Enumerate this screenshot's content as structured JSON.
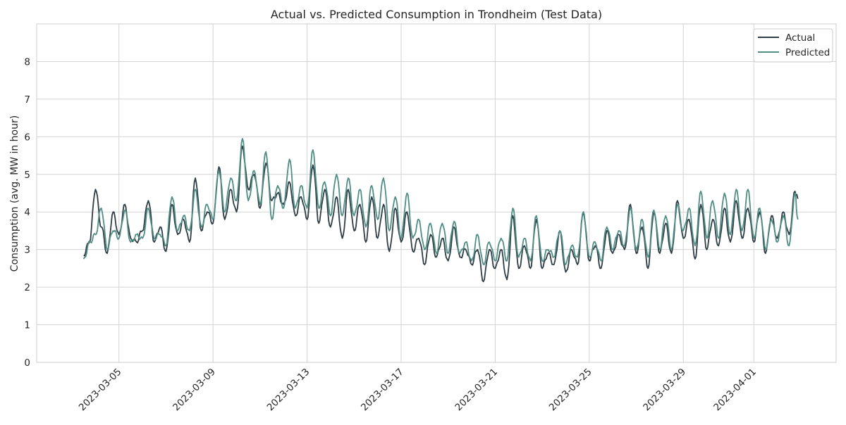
{
  "chart_data": {
    "type": "line",
    "title": "Actual vs. Predicted Consumption in Trondheim (Test Data)",
    "xlabel": "",
    "ylabel": "Consumption (avg. MW in hour)",
    "x_range": [
      "2023-03-03",
      "2023-04-02"
    ],
    "ylim": [
      0,
      9
    ],
    "yticks": [
      0,
      1,
      2,
      3,
      4,
      5,
      6,
      7,
      8
    ],
    "xticks": [
      "2023-03-05",
      "2023-03-09",
      "2023-03-13",
      "2023-03-17",
      "2023-03-21",
      "2023-03-25",
      "2023-03-29",
      "2023-04-01"
    ],
    "grid": true,
    "legend_position": "top-right",
    "colors": {
      "actual": "#2e3d45",
      "predicted": "#4f8d85",
      "grid": "#d4d4d4",
      "axes_edge": "#cccccc"
    },
    "series": [
      {
        "name": "Actual",
        "color": "#2e3d45",
        "points": [
          [
            "2023-03-03 12:00",
            2.85
          ],
          [
            "2023-03-03 18:00",
            3.2
          ],
          [
            "2023-03-04 00:00",
            4.6
          ],
          [
            "2023-03-04 06:00",
            3.6
          ],
          [
            "2023-03-04 12:00",
            2.9
          ],
          [
            "2023-03-04 18:00",
            4.0
          ],
          [
            "2023-03-05 00:00",
            3.4
          ],
          [
            "2023-03-05 06:00",
            4.2
          ],
          [
            "2023-03-05 12:00",
            3.3
          ],
          [
            "2023-03-05 18:00",
            3.2
          ],
          [
            "2023-03-06 00:00",
            3.5
          ],
          [
            "2023-03-06 06:00",
            4.3
          ],
          [
            "2023-03-06 12:00",
            3.2
          ],
          [
            "2023-03-06 18:00",
            3.6
          ],
          [
            "2023-03-07 00:00",
            2.95
          ],
          [
            "2023-03-07 06:00",
            4.2
          ],
          [
            "2023-03-07 12:00",
            3.4
          ],
          [
            "2023-03-07 18:00",
            3.8
          ],
          [
            "2023-03-08 00:00",
            3.2
          ],
          [
            "2023-03-08 06:00",
            4.9
          ],
          [
            "2023-03-08 12:00",
            3.5
          ],
          [
            "2023-03-08 18:00",
            4.0
          ],
          [
            "2023-03-09 00:00",
            3.7
          ],
          [
            "2023-03-09 06:00",
            5.2
          ],
          [
            "2023-03-09 12:00",
            3.8
          ],
          [
            "2023-03-09 18:00",
            4.6
          ],
          [
            "2023-03-10 00:00",
            4.0
          ],
          [
            "2023-03-10 06:00",
            5.75
          ],
          [
            "2023-03-10 12:00",
            4.6
          ],
          [
            "2023-03-10 18:00",
            5.0
          ],
          [
            "2023-03-11 00:00",
            4.1
          ],
          [
            "2023-03-11 06:00",
            5.3
          ],
          [
            "2023-03-11 12:00",
            4.3
          ],
          [
            "2023-03-11 18:00",
            4.5
          ],
          [
            "2023-03-12 00:00",
            4.2
          ],
          [
            "2023-03-12 06:00",
            4.8
          ],
          [
            "2023-03-12 12:00",
            3.9
          ],
          [
            "2023-03-12 18:00",
            4.4
          ],
          [
            "2023-03-13 00:00",
            3.8
          ],
          [
            "2023-03-13 06:00",
            5.25
          ],
          [
            "2023-03-13 12:00",
            3.7
          ],
          [
            "2023-03-13 18:00",
            4.6
          ],
          [
            "2023-03-14 00:00",
            3.6
          ],
          [
            "2023-03-14 06:00",
            4.4
          ],
          [
            "2023-03-14 12:00",
            3.3
          ],
          [
            "2023-03-14 18:00",
            4.6
          ],
          [
            "2023-03-15 00:00",
            3.5
          ],
          [
            "2023-03-15 06:00",
            4.2
          ],
          [
            "2023-03-15 12:00",
            3.2
          ],
          [
            "2023-03-15 18:00",
            4.4
          ],
          [
            "2023-03-16 00:00",
            3.3
          ],
          [
            "2023-03-16 06:00",
            4.2
          ],
          [
            "2023-03-16 12:00",
            2.95
          ],
          [
            "2023-03-16 18:00",
            4.1
          ],
          [
            "2023-03-17 00:00",
            3.2
          ],
          [
            "2023-03-17 06:00",
            4.0
          ],
          [
            "2023-03-17 12:00",
            2.95
          ],
          [
            "2023-03-17 18:00",
            3.3
          ],
          [
            "2023-03-18 00:00",
            2.6
          ],
          [
            "2023-03-18 06:00",
            3.4
          ],
          [
            "2023-03-18 12:00",
            2.8
          ],
          [
            "2023-03-18 18:00",
            3.3
          ],
          [
            "2023-03-19 00:00",
            2.7
          ],
          [
            "2023-03-19 06:00",
            3.6
          ],
          [
            "2023-03-19 12:00",
            2.8
          ],
          [
            "2023-03-19 18:00",
            3.0
          ],
          [
            "2023-03-20 00:00",
            2.6
          ],
          [
            "2023-03-20 06:00",
            3.0
          ],
          [
            "2023-03-20 12:00",
            2.15
          ],
          [
            "2023-03-20 18:00",
            3.0
          ],
          [
            "2023-03-21 00:00",
            2.5
          ],
          [
            "2023-03-21 06:00",
            3.0
          ],
          [
            "2023-03-21 12:00",
            2.2
          ],
          [
            "2023-03-21 18:00",
            3.9
          ],
          [
            "2023-03-22 00:00",
            2.5
          ],
          [
            "2023-03-22 06:00",
            3.1
          ],
          [
            "2023-03-22 12:00",
            2.5
          ],
          [
            "2023-03-22 18:00",
            3.8
          ],
          [
            "2023-03-23 00:00",
            2.5
          ],
          [
            "2023-03-23 06:00",
            2.9
          ],
          [
            "2023-03-23 12:00",
            2.6
          ],
          [
            "2023-03-23 18:00",
            3.5
          ],
          [
            "2023-03-24 00:00",
            2.4
          ],
          [
            "2023-03-24 06:00",
            3.0
          ],
          [
            "2023-03-24 12:00",
            2.6
          ],
          [
            "2023-03-24 18:00",
            4.0
          ],
          [
            "2023-03-25 00:00",
            2.7
          ],
          [
            "2023-03-25 06:00",
            3.1
          ],
          [
            "2023-03-25 12:00",
            2.5
          ],
          [
            "2023-03-25 18:00",
            3.5
          ],
          [
            "2023-03-26 00:00",
            2.9
          ],
          [
            "2023-03-26 06:00",
            3.4
          ],
          [
            "2023-03-26 12:00",
            3.0
          ],
          [
            "2023-03-26 18:00",
            4.2
          ],
          [
            "2023-03-27 00:00",
            2.9
          ],
          [
            "2023-03-27 06:00",
            3.6
          ],
          [
            "2023-03-27 12:00",
            2.5
          ],
          [
            "2023-03-27 18:00",
            4.0
          ],
          [
            "2023-03-28 00:00",
            2.9
          ],
          [
            "2023-03-28 06:00",
            3.7
          ],
          [
            "2023-03-28 12:00",
            2.9
          ],
          [
            "2023-03-28 18:00",
            4.3
          ],
          [
            "2023-03-29 00:00",
            3.3
          ],
          [
            "2023-03-29 06:00",
            3.8
          ],
          [
            "2023-03-29 12:00",
            2.75
          ],
          [
            "2023-03-29 18:00",
            4.2
          ],
          [
            "2023-03-30 00:00",
            3.0
          ],
          [
            "2023-03-30 06:00",
            3.8
          ],
          [
            "2023-03-30 12:00",
            3.1
          ],
          [
            "2023-03-30 18:00",
            4.1
          ],
          [
            "2023-03-31 00:00",
            3.2
          ],
          [
            "2023-03-31 06:00",
            4.3
          ],
          [
            "2023-03-31 12:00",
            3.3
          ],
          [
            "2023-03-31 18:00",
            4.1
          ],
          [
            "2023-04-01 00:00",
            3.2
          ],
          [
            "2023-04-01 06:00",
            4.0
          ],
          [
            "2023-04-01 12:00",
            2.9
          ],
          [
            "2023-04-01 18:00",
            3.9
          ],
          [
            "2023-04-02 00:00",
            3.3
          ],
          [
            "2023-04-02 06:00",
            4.0
          ],
          [
            "2023-04-02 12:00",
            3.4
          ],
          [
            "2023-04-02 18:00",
            4.55
          ],
          [
            "2023-04-02 21:00",
            4.35
          ]
        ]
      },
      {
        "name": "Predicted",
        "color": "#4f8d85",
        "points": [
          [
            "2023-03-03 12:00",
            2.75
          ],
          [
            "2023-03-03 18:00",
            3.2
          ],
          [
            "2023-03-04 00:00",
            3.4
          ],
          [
            "2023-03-04 06:00",
            4.1
          ],
          [
            "2023-03-04 12:00",
            3.0
          ],
          [
            "2023-03-04 18:00",
            3.5
          ],
          [
            "2023-03-05 00:00",
            3.3
          ],
          [
            "2023-03-05 06:00",
            4.05
          ],
          [
            "2023-03-05 12:00",
            3.2
          ],
          [
            "2023-03-05 18:00",
            3.4
          ],
          [
            "2023-03-06 00:00",
            3.3
          ],
          [
            "2023-03-06 06:00",
            4.1
          ],
          [
            "2023-03-06 12:00",
            3.3
          ],
          [
            "2023-03-06 18:00",
            3.4
          ],
          [
            "2023-03-07 00:00",
            3.1
          ],
          [
            "2023-03-07 06:00",
            4.4
          ],
          [
            "2023-03-07 12:00",
            3.5
          ],
          [
            "2023-03-07 18:00",
            3.9
          ],
          [
            "2023-03-08 00:00",
            3.5
          ],
          [
            "2023-03-08 06:00",
            4.6
          ],
          [
            "2023-03-08 12:00",
            3.6
          ],
          [
            "2023-03-08 18:00",
            4.2
          ],
          [
            "2023-03-09 00:00",
            3.8
          ],
          [
            "2023-03-09 06:00",
            5.1
          ],
          [
            "2023-03-09 12:00",
            4.0
          ],
          [
            "2023-03-09 18:00",
            4.9
          ],
          [
            "2023-03-10 00:00",
            4.3
          ],
          [
            "2023-03-10 06:00",
            5.95
          ],
          [
            "2023-03-10 12:00",
            4.3
          ],
          [
            "2023-03-10 18:00",
            5.1
          ],
          [
            "2023-03-11 00:00",
            4.2
          ],
          [
            "2023-03-11 06:00",
            5.6
          ],
          [
            "2023-03-11 12:00",
            3.8
          ],
          [
            "2023-03-11 18:00",
            4.7
          ],
          [
            "2023-03-12 00:00",
            4.1
          ],
          [
            "2023-03-12 06:00",
            5.4
          ],
          [
            "2023-03-12 12:00",
            4.1
          ],
          [
            "2023-03-12 18:00",
            4.7
          ],
          [
            "2023-03-13 00:00",
            4.1
          ],
          [
            "2023-03-13 06:00",
            5.65
          ],
          [
            "2023-03-13 12:00",
            4.1
          ],
          [
            "2023-03-13 18:00",
            4.8
          ],
          [
            "2023-03-14 00:00",
            3.9
          ],
          [
            "2023-03-14 06:00",
            5.0
          ],
          [
            "2023-03-14 12:00",
            3.9
          ],
          [
            "2023-03-14 18:00",
            4.9
          ],
          [
            "2023-03-15 00:00",
            3.9
          ],
          [
            "2023-03-15 06:00",
            4.6
          ],
          [
            "2023-03-15 12:00",
            3.6
          ],
          [
            "2023-03-15 18:00",
            4.7
          ],
          [
            "2023-03-16 00:00",
            3.8
          ],
          [
            "2023-03-16 06:00",
            4.9
          ],
          [
            "2023-03-16 12:00",
            3.5
          ],
          [
            "2023-03-16 18:00",
            4.4
          ],
          [
            "2023-03-17 00:00",
            3.3
          ],
          [
            "2023-03-17 06:00",
            4.5
          ],
          [
            "2023-03-17 12:00",
            3.3
          ],
          [
            "2023-03-17 18:00",
            3.8
          ],
          [
            "2023-03-18 00:00",
            3.0
          ],
          [
            "2023-03-18 06:00",
            3.7
          ],
          [
            "2023-03-18 12:00",
            2.9
          ],
          [
            "2023-03-18 18:00",
            3.7
          ],
          [
            "2023-03-19 00:00",
            2.9
          ],
          [
            "2023-03-19 06:00",
            3.75
          ],
          [
            "2023-03-19 12:00",
            2.9
          ],
          [
            "2023-03-19 18:00",
            3.2
          ],
          [
            "2023-03-20 00:00",
            2.7
          ],
          [
            "2023-03-20 06:00",
            3.4
          ],
          [
            "2023-03-20 12:00",
            2.6
          ],
          [
            "2023-03-20 18:00",
            3.2
          ],
          [
            "2023-03-21 00:00",
            2.7
          ],
          [
            "2023-03-21 06:00",
            3.3
          ],
          [
            "2023-03-21 12:00",
            2.7
          ],
          [
            "2023-03-21 18:00",
            4.1
          ],
          [
            "2023-03-22 00:00",
            2.8
          ],
          [
            "2023-03-22 06:00",
            3.3
          ],
          [
            "2023-03-22 12:00",
            2.7
          ],
          [
            "2023-03-22 18:00",
            3.9
          ],
          [
            "2023-03-23 00:00",
            2.7
          ],
          [
            "2023-03-23 06:00",
            3.0
          ],
          [
            "2023-03-23 12:00",
            2.8
          ],
          [
            "2023-03-23 18:00",
            3.5
          ],
          [
            "2023-03-24 00:00",
            2.6
          ],
          [
            "2023-03-24 06:00",
            3.1
          ],
          [
            "2023-03-24 12:00",
            2.8
          ],
          [
            "2023-03-24 18:00",
            4.0
          ],
          [
            "2023-03-25 00:00",
            2.8
          ],
          [
            "2023-03-25 06:00",
            3.2
          ],
          [
            "2023-03-25 12:00",
            2.7
          ],
          [
            "2023-03-25 18:00",
            3.6
          ],
          [
            "2023-03-26 00:00",
            3.0
          ],
          [
            "2023-03-26 06:00",
            3.5
          ],
          [
            "2023-03-26 12:00",
            3.1
          ],
          [
            "2023-03-26 18:00",
            4.1
          ],
          [
            "2023-03-27 00:00",
            3.0
          ],
          [
            "2023-03-27 06:00",
            3.8
          ],
          [
            "2023-03-27 12:00",
            2.8
          ],
          [
            "2023-03-27 18:00",
            4.05
          ],
          [
            "2023-03-28 00:00",
            3.0
          ],
          [
            "2023-03-28 06:00",
            3.9
          ],
          [
            "2023-03-28 12:00",
            3.0
          ],
          [
            "2023-03-28 18:00",
            4.2
          ],
          [
            "2023-03-29 00:00",
            3.5
          ],
          [
            "2023-03-29 06:00",
            4.1
          ],
          [
            "2023-03-29 12:00",
            3.1
          ],
          [
            "2023-03-29 18:00",
            4.55
          ],
          [
            "2023-03-30 00:00",
            3.3
          ],
          [
            "2023-03-30 06:00",
            4.3
          ],
          [
            "2023-03-30 12:00",
            3.3
          ],
          [
            "2023-03-30 18:00",
            4.5
          ],
          [
            "2023-03-31 00:00",
            3.4
          ],
          [
            "2023-03-31 06:00",
            4.6
          ],
          [
            "2023-03-31 12:00",
            3.5
          ],
          [
            "2023-03-31 18:00",
            4.6
          ],
          [
            "2023-04-01 00:00",
            3.3
          ],
          [
            "2023-04-01 06:00",
            4.1
          ],
          [
            "2023-04-01 12:00",
            3.0
          ],
          [
            "2023-04-01 18:00",
            3.8
          ],
          [
            "2023-04-02 00:00",
            3.2
          ],
          [
            "2023-04-02 06:00",
            3.9
          ],
          [
            "2023-04-02 12:00",
            3.1
          ],
          [
            "2023-04-02 18:00",
            4.5
          ],
          [
            "2023-04-02 21:00",
            3.8
          ]
        ]
      }
    ]
  }
}
